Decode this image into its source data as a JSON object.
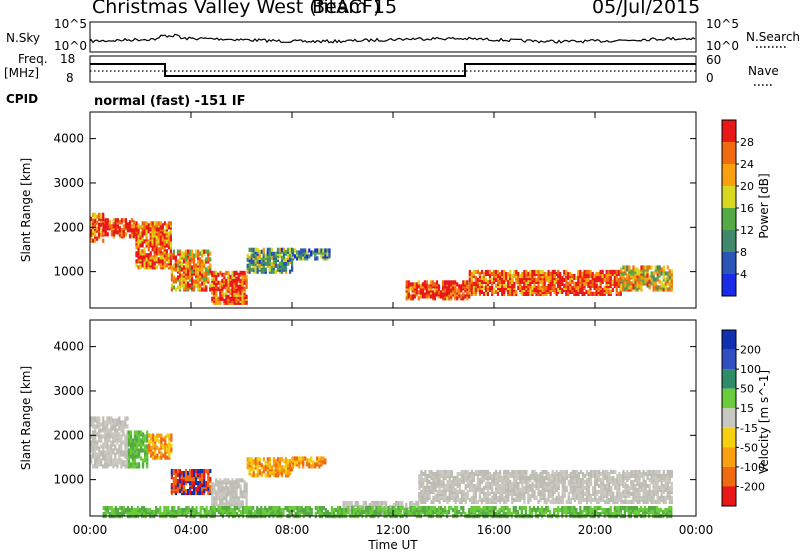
{
  "header": {
    "station": "Christmas Valley West (fitACF)",
    "beam": "Beam 15",
    "date": "05/Jul/2015"
  },
  "labels": {
    "nsky": "N.Sky",
    "nsky_scale_top": "10^5",
    "nsky_scale_bottom": "10^0",
    "nsearch": "N.Search",
    "freq": "Freq.",
    "mhz": "[MHz]",
    "freq_top": "18",
    "freq_bottom": "8",
    "nave": "Nave",
    "nave_top": "60",
    "nave_bottom": "0",
    "cpid": "CPID",
    "cpid_value": "normal (fast) -151 IF"
  },
  "chart_data": [
    {
      "type": "heatmap",
      "panel": "power",
      "ylabel": "Slant Range [km]",
      "xlabel": "",
      "colorbar_label": "Power [dB]",
      "colorbar_ticks": [
        "4",
        "8",
        "12",
        "16",
        "20",
        "24",
        "28"
      ],
      "colorbar_colors": [
        "#1a2be8",
        "#2a56b8",
        "#3f8a6a",
        "#56aa44",
        "#d8d820",
        "#f8a010",
        "#f06a10",
        "#e81818"
      ],
      "y_ticks": [
        1000,
        2000,
        3000,
        4000
      ],
      "ylim": [
        180,
        4600
      ],
      "xlim": [
        0,
        24
      ],
      "regions": [
        {
          "t": [
            0.0,
            0.5
          ],
          "r": [
            1700,
            2300
          ],
          "level": 0.8
        },
        {
          "t": [
            0.5,
            1.8
          ],
          "r": [
            1800,
            2200
          ],
          "level": 0.9
        },
        {
          "t": [
            1.8,
            3.2
          ],
          "r": [
            1100,
            2100
          ],
          "level": 0.8
        },
        {
          "t": [
            3.2,
            4.8
          ],
          "r": [
            600,
            1500
          ],
          "level": 0.7
        },
        {
          "t": [
            4.8,
            6.2
          ],
          "r": [
            300,
            1000
          ],
          "level": 0.85
        },
        {
          "t": [
            6.2,
            8.0
          ],
          "r": [
            1000,
            1500
          ],
          "level": 0.4
        },
        {
          "t": [
            8.0,
            9.5
          ],
          "r": [
            1300,
            1500
          ],
          "level": 0.3
        },
        {
          "t": [
            12.5,
            15.0
          ],
          "r": [
            400,
            800
          ],
          "level": 0.9
        },
        {
          "t": [
            15.0,
            18.5
          ],
          "r": [
            500,
            1000
          ],
          "level": 0.85
        },
        {
          "t": [
            18.5,
            21.0
          ],
          "r": [
            500,
            1000
          ],
          "level": 0.9
        },
        {
          "t": [
            21.0,
            23.0
          ],
          "r": [
            600,
            1100
          ],
          "level": 0.6
        }
      ]
    },
    {
      "type": "heatmap",
      "panel": "velocity",
      "ylabel": "Slant Range [km]",
      "xlabel": "Time UT",
      "colorbar_label": "Velocity [m s^-1]",
      "colorbar_ticks": [
        "200",
        "100",
        "50",
        "15",
        "-15",
        "-50",
        "-100",
        "-200"
      ],
      "colorbar_colors": [
        "#1030b0",
        "#3050c0",
        "#2e8c66",
        "#6acc3c",
        "#c8c8c0",
        "#f4d010",
        "#f8a010",
        "#f06a10",
        "#e81818"
      ],
      "y_ticks": [
        1000,
        2000,
        3000,
        4000
      ],
      "ylim": [
        180,
        4600
      ],
      "xlim": [
        0,
        24
      ],
      "x_ticks": [
        "00:00",
        "04:00",
        "08:00",
        "12:00",
        "16:00",
        "20:00",
        "00:00"
      ],
      "regions": [
        {
          "t": [
            0.0,
            1.5
          ],
          "r": [
            1300,
            2400
          ],
          "v": "grey"
        },
        {
          "t": [
            1.5,
            2.3
          ],
          "r": [
            1300,
            2100
          ],
          "v": "green"
        },
        {
          "t": [
            2.3,
            3.2
          ],
          "r": [
            1500,
            2000
          ],
          "v": "orange"
        },
        {
          "t": [
            3.2,
            4.8
          ],
          "r": [
            700,
            1200
          ],
          "v": "red"
        },
        {
          "t": [
            4.8,
            6.2
          ],
          "r": [
            400,
            1000
          ],
          "v": "grey"
        },
        {
          "t": [
            6.2,
            8.0
          ],
          "r": [
            1100,
            1500
          ],
          "v": "orange"
        },
        {
          "t": [
            8.0,
            9.3
          ],
          "r": [
            1300,
            1500
          ],
          "v": "orange"
        },
        {
          "t": [
            10.0,
            13.0
          ],
          "r": [
            250,
            500
          ],
          "v": "grey"
        },
        {
          "t": [
            13.0,
            23.0
          ],
          "r": [
            500,
            1200
          ],
          "v": "grey"
        },
        {
          "t": [
            0.5,
            23.0
          ],
          "r": [
            180,
            400
          ],
          "v": "green"
        }
      ]
    }
  ]
}
